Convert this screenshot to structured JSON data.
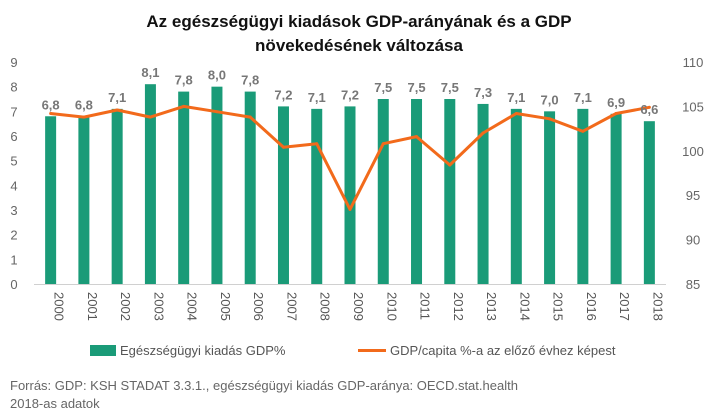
{
  "chart_data": {
    "type": "bar",
    "title_line1": "Az egészségügyi kiadások GDP-arányának és a GDP",
    "title_line2": "növekedésének változása",
    "categories": [
      "2000",
      "2001",
      "2002",
      "2003",
      "2004",
      "2005",
      "2006",
      "2007",
      "2008",
      "2009",
      "2010",
      "2011",
      "2012",
      "2013",
      "2014",
      "2015",
      "2016",
      "2017",
      "2018"
    ],
    "series": [
      {
        "name": "Egészségügyi kiadás GDP%",
        "type": "bar",
        "axis": "left",
        "color": "#1a9b78",
        "values": [
          6.8,
          6.8,
          7.1,
          8.1,
          7.8,
          8.0,
          7.8,
          7.2,
          7.1,
          7.2,
          7.5,
          7.5,
          7.5,
          7.3,
          7.1,
          7.0,
          7.1,
          6.9,
          6.6
        ],
        "data_labels": [
          "6,8",
          "6,8",
          "7,1",
          "8,1",
          "7,8",
          "8,0",
          "7,8",
          "7,2",
          "7,1",
          "7,2",
          "7,5",
          "7,5",
          "7,5",
          "7,3",
          "7,1",
          "7,0",
          "7,1",
          "6,9",
          "6,6"
        ]
      },
      {
        "name": "GDP/capita %-a az előző évhez képest",
        "type": "line",
        "axis": "right",
        "color": "#f26a1b",
        "values": [
          104.2,
          103.8,
          104.6,
          103.8,
          105.0,
          104.4,
          103.8,
          100.4,
          100.8,
          93.4,
          100.8,
          101.6,
          98.4,
          102.0,
          104.2,
          103.6,
          102.2,
          104.2,
          104.9
        ]
      }
    ],
    "y_left": {
      "min": 0,
      "max": 9,
      "ticks": [
        "0",
        "1",
        "2",
        "3",
        "4",
        "5",
        "6",
        "7",
        "8",
        "9"
      ]
    },
    "y_right": {
      "min": 85,
      "max": 110,
      "ticks": [
        "85",
        "90",
        "95",
        "100",
        "105",
        "110"
      ]
    },
    "grid": false,
    "legend_position": "bottom"
  },
  "source": {
    "line1": "Forrás: GDP: KSH STADAT 3.3.1., egészségügyi kiadás GDP-aránya: OECD.stat.health",
    "line2": "2018-as adatok"
  }
}
